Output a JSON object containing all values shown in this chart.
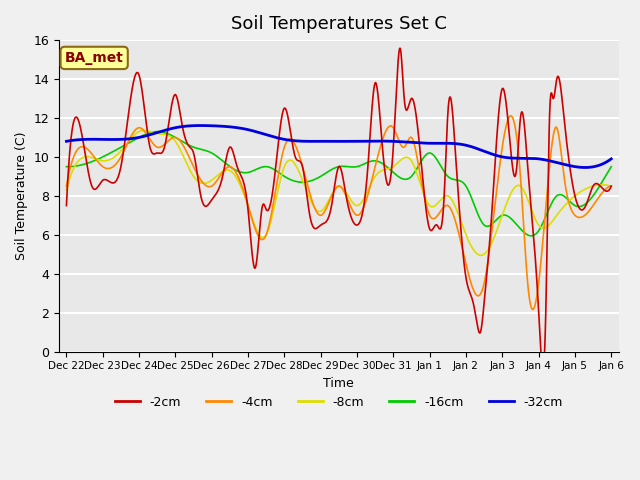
{
  "title": "Soil Temperatures Set C",
  "xlabel": "Time",
  "ylabel": "Soil Temperature (C)",
  "ylim": [
    0,
    16
  ],
  "yticks": [
    0,
    2,
    4,
    6,
    8,
    10,
    12,
    14,
    16
  ],
  "xlabels": [
    "Dec 22",
    "Dec 23",
    "Dec 24",
    "Dec 25",
    "Dec 26",
    "Dec 27",
    "Dec 28",
    "Dec 29",
    "Dec 30",
    "Dec 31",
    "Jan 1",
    "Jan 2",
    "Jan 3",
    "Jan 4",
    "Jan 5",
    "Jan 6"
  ],
  "colors": {
    "-2cm": "#cc0000",
    "-4cm": "#ff8800",
    "-8cm": "#dddd00",
    "-16cm": "#00cc00",
    "-32cm": "#0000dd"
  },
  "legend_labels": [
    "-2cm",
    "-4cm",
    "-8cm",
    "-16cm",
    "-32cm"
  ],
  "background_color": "#e8e8e8",
  "annotation_text": "BA_met",
  "annotation_box_color": "#ffff99",
  "annotation_text_color": "#8b0000"
}
